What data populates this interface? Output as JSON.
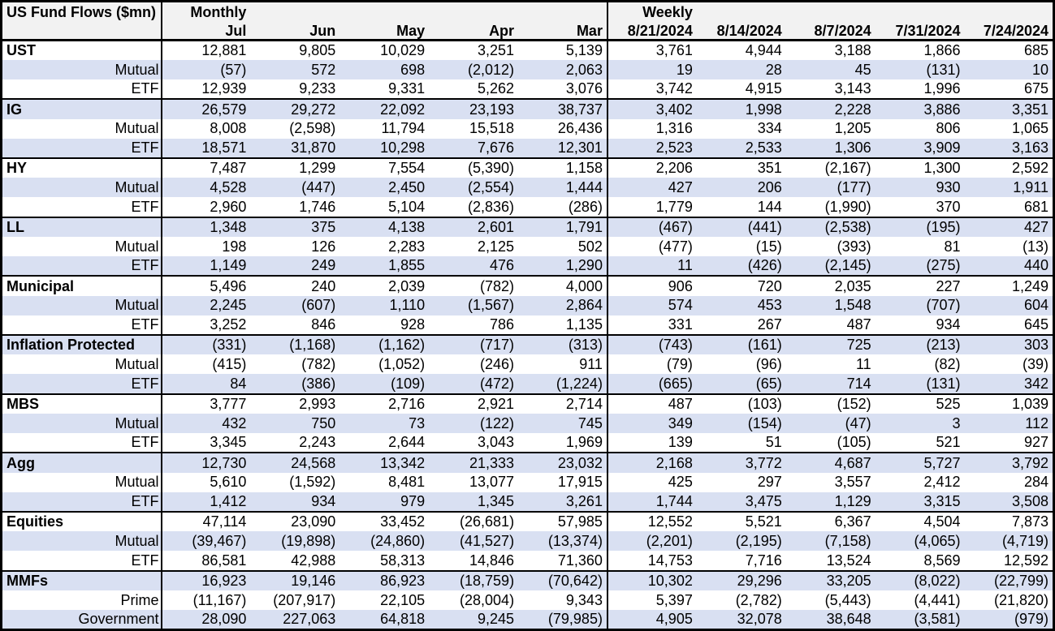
{
  "colors": {
    "band_row": "#d9e0f2",
    "header_bg": "#f2f2f2",
    "border": "#000000",
    "text": "#000000",
    "plain_row": "#ffffff"
  },
  "chart_data": {
    "type": "table",
    "title": "US Fund Flows ($mn)",
    "negative_format": "parentheses",
    "row_banding": "alternating light blue starting on second row",
    "sections": [
      {
        "label": "Monthly",
        "columns": [
          "Jul",
          "Jun",
          "May",
          "Apr",
          "Mar"
        ]
      },
      {
        "label": "Weekly",
        "columns": [
          "8/21/2024",
          "8/14/2024",
          "8/7/2024",
          "7/31/2024",
          "7/24/2024"
        ]
      }
    ],
    "groups": [
      {
        "name": "UST",
        "rows": [
          {
            "label": "UST",
            "category": true,
            "values": [
              "12,881",
              "9,805",
              "10,029",
              "3,251",
              "5,139",
              "3,761",
              "4,944",
              "3,188",
              "1,866",
              "685"
            ]
          },
          {
            "label": "Mutual",
            "category": false,
            "values": [
              "(57)",
              "572",
              "698",
              "(2,012)",
              "2,063",
              "19",
              "28",
              "45",
              "(131)",
              "10"
            ]
          },
          {
            "label": "ETF",
            "category": false,
            "values": [
              "12,939",
              "9,233",
              "9,331",
              "5,262",
              "3,076",
              "3,742",
              "4,915",
              "3,143",
              "1,996",
              "675"
            ]
          }
        ]
      },
      {
        "name": "IG",
        "rows": [
          {
            "label": "IG",
            "category": true,
            "values": [
              "26,579",
              "29,272",
              "22,092",
              "23,193",
              "38,737",
              "3,402",
              "1,998",
              "2,228",
              "3,886",
              "3,351"
            ]
          },
          {
            "label": "Mutual",
            "category": false,
            "values": [
              "8,008",
              "(2,598)",
              "11,794",
              "15,518",
              "26,436",
              "1,316",
              "334",
              "1,205",
              "806",
              "1,065"
            ]
          },
          {
            "label": "ETF",
            "category": false,
            "values": [
              "18,571",
              "31,870",
              "10,298",
              "7,676",
              "12,301",
              "2,523",
              "2,533",
              "1,306",
              "3,909",
              "3,163"
            ]
          }
        ]
      },
      {
        "name": "HY",
        "rows": [
          {
            "label": "HY",
            "category": true,
            "values": [
              "7,487",
              "1,299",
              "7,554",
              "(5,390)",
              "1,158",
              "2,206",
              "351",
              "(2,167)",
              "1,300",
              "2,592"
            ]
          },
          {
            "label": "Mutual",
            "category": false,
            "values": [
              "4,528",
              "(447)",
              "2,450",
              "(2,554)",
              "1,444",
              "427",
              "206",
              "(177)",
              "930",
              "1,911"
            ]
          },
          {
            "label": "ETF",
            "category": false,
            "values": [
              "2,960",
              "1,746",
              "5,104",
              "(2,836)",
              "(286)",
              "1,779",
              "144",
              "(1,990)",
              "370",
              "681"
            ]
          }
        ]
      },
      {
        "name": "LL",
        "rows": [
          {
            "label": "LL",
            "category": true,
            "values": [
              "1,348",
              "375",
              "4,138",
              "2,601",
              "1,791",
              "(467)",
              "(441)",
              "(2,538)",
              "(195)",
              "427"
            ]
          },
          {
            "label": "Mutual",
            "category": false,
            "values": [
              "198",
              "126",
              "2,283",
              "2,125",
              "502",
              "(477)",
              "(15)",
              "(393)",
              "81",
              "(13)"
            ]
          },
          {
            "label": "ETF",
            "category": false,
            "values": [
              "1,149",
              "249",
              "1,855",
              "476",
              "1,290",
              "11",
              "(426)",
              "(2,145)",
              "(275)",
              "440"
            ]
          }
        ]
      },
      {
        "name": "Municipal",
        "rows": [
          {
            "label": "Municipal",
            "category": true,
            "values": [
              "5,496",
              "240",
              "2,039",
              "(782)",
              "4,000",
              "906",
              "720",
              "2,035",
              "227",
              "1,249"
            ]
          },
          {
            "label": "Mutual",
            "category": false,
            "values": [
              "2,245",
              "(607)",
              "1,110",
              "(1,567)",
              "2,864",
              "574",
              "453",
              "1,548",
              "(707)",
              "604"
            ]
          },
          {
            "label": "ETF",
            "category": false,
            "values": [
              "3,252",
              "846",
              "928",
              "786",
              "1,135",
              "331",
              "267",
              "487",
              "934",
              "645"
            ]
          }
        ]
      },
      {
        "name": "Inflation Protected",
        "rows": [
          {
            "label": "Inflation Protected",
            "category": true,
            "values": [
              "(331)",
              "(1,168)",
              "(1,162)",
              "(717)",
              "(313)",
              "(743)",
              "(161)",
              "725",
              "(213)",
              "303"
            ]
          },
          {
            "label": "Mutual",
            "category": false,
            "values": [
              "(415)",
              "(782)",
              "(1,052)",
              "(246)",
              "911",
              "(79)",
              "(96)",
              "11",
              "(82)",
              "(39)"
            ]
          },
          {
            "label": "ETF",
            "category": false,
            "values": [
              "84",
              "(386)",
              "(109)",
              "(472)",
              "(1,224)",
              "(665)",
              "(65)",
              "714",
              "(131)",
              "342"
            ]
          }
        ]
      },
      {
        "name": "MBS",
        "rows": [
          {
            "label": "MBS",
            "category": true,
            "values": [
              "3,777",
              "2,993",
              "2,716",
              "2,921",
              "2,714",
              "487",
              "(103)",
              "(152)",
              "525",
              "1,039"
            ]
          },
          {
            "label": "Mutual",
            "category": false,
            "values": [
              "432",
              "750",
              "73",
              "(122)",
              "745",
              "349",
              "(154)",
              "(47)",
              "3",
              "112"
            ]
          },
          {
            "label": "ETF",
            "category": false,
            "values": [
              "3,345",
              "2,243",
              "2,644",
              "3,043",
              "1,969",
              "139",
              "51",
              "(105)",
              "521",
              "927"
            ]
          }
        ]
      },
      {
        "name": "Agg",
        "rows": [
          {
            "label": "Agg",
            "category": true,
            "values": [
              "12,730",
              "24,568",
              "13,342",
              "21,333",
              "23,032",
              "2,168",
              "3,772",
              "4,687",
              "5,727",
              "3,792"
            ]
          },
          {
            "label": "Mutual",
            "category": false,
            "values": [
              "5,610",
              "(1,592)",
              "8,481",
              "13,077",
              "17,915",
              "425",
              "297",
              "3,557",
              "2,412",
              "284"
            ]
          },
          {
            "label": "ETF",
            "category": false,
            "values": [
              "1,412",
              "934",
              "979",
              "1,345",
              "3,261",
              "1,744",
              "3,475",
              "1,129",
              "3,315",
              "3,508"
            ]
          }
        ]
      },
      {
        "name": "Equities",
        "rows": [
          {
            "label": "Equities",
            "category": true,
            "values": [
              "47,114",
              "23,090",
              "33,452",
              "(26,681)",
              "57,985",
              "12,552",
              "5,521",
              "6,367",
              "4,504",
              "7,873"
            ]
          },
          {
            "label": "Mutual",
            "category": false,
            "values": [
              "(39,467)",
              "(19,898)",
              "(24,860)",
              "(41,527)",
              "(13,374)",
              "(2,201)",
              "(2,195)",
              "(7,158)",
              "(4,065)",
              "(4,719)"
            ]
          },
          {
            "label": "ETF",
            "category": false,
            "values": [
              "86,581",
              "42,988",
              "58,313",
              "14,846",
              "71,360",
              "14,753",
              "7,716",
              "13,524",
              "8,569",
              "12,592"
            ]
          }
        ]
      },
      {
        "name": "MMFs",
        "rows": [
          {
            "label": "MMFs",
            "category": true,
            "values": [
              "16,923",
              "19,146",
              "86,923",
              "(18,759)",
              "(70,642)",
              "10,302",
              "29,296",
              "33,205",
              "(8,022)",
              "(22,799)"
            ]
          },
          {
            "label": "Prime",
            "category": false,
            "values": [
              "(11,167)",
              "(207,917)",
              "22,105",
              "(28,004)",
              "9,343",
              "5,397",
              "(2,782)",
              "(5,443)",
              "(4,441)",
              "(21,820)"
            ]
          },
          {
            "label": "Government",
            "category": false,
            "values": [
              "28,090",
              "227,063",
              "64,818",
              "9,245",
              "(79,985)",
              "4,905",
              "32,078",
              "38,648",
              "(3,581)",
              "(979)"
            ]
          }
        ]
      }
    ]
  }
}
